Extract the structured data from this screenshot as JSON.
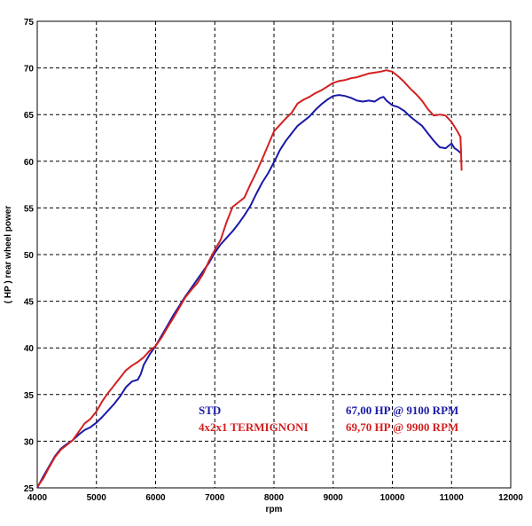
{
  "chart_data": {
    "type": "line",
    "xlabel": "rpm",
    "ylabel": "( HP )  rear  wheel  power",
    "xlim": [
      4000,
      12000
    ],
    "ylim": [
      25,
      75
    ],
    "xticks": [
      4000,
      5000,
      6000,
      7000,
      8000,
      9000,
      10000,
      11000,
      12000
    ],
    "yticks": [
      25,
      30,
      35,
      40,
      45,
      50,
      55,
      60,
      65,
      70,
      75
    ],
    "grid": true,
    "legend_position": "bottom-right",
    "series": [
      {
        "name": "STD",
        "summary": "67,00 HP @ 9100 RPM",
        "color": "#1a1aa8",
        "points": [
          [
            4000,
            25.0
          ],
          [
            4100,
            26.2
          ],
          [
            4200,
            27.3
          ],
          [
            4300,
            28.4
          ],
          [
            4400,
            29.2
          ],
          [
            4500,
            29.7
          ],
          [
            4600,
            30.1
          ],
          [
            4700,
            30.7
          ],
          [
            4800,
            31.2
          ],
          [
            4900,
            31.5
          ],
          [
            5000,
            32.0
          ],
          [
            5100,
            32.6
          ],
          [
            5200,
            33.3
          ],
          [
            5300,
            34.0
          ],
          [
            5400,
            34.8
          ],
          [
            5500,
            35.8
          ],
          [
            5600,
            36.4
          ],
          [
            5700,
            36.6
          ],
          [
            5750,
            37.2
          ],
          [
            5800,
            38.2
          ],
          [
            5900,
            39.3
          ],
          [
            6000,
            40.2
          ],
          [
            6100,
            41.3
          ],
          [
            6200,
            42.4
          ],
          [
            6300,
            43.5
          ],
          [
            6400,
            44.5
          ],
          [
            6500,
            45.5
          ],
          [
            6600,
            46.4
          ],
          [
            6700,
            47.3
          ],
          [
            6800,
            48.2
          ],
          [
            6900,
            49.1
          ],
          [
            7000,
            50.2
          ],
          [
            7100,
            51.1
          ],
          [
            7200,
            51.8
          ],
          [
            7300,
            52.5
          ],
          [
            7400,
            53.3
          ],
          [
            7500,
            54.2
          ],
          [
            7600,
            55.2
          ],
          [
            7700,
            56.5
          ],
          [
            7800,
            57.7
          ],
          [
            7900,
            58.7
          ],
          [
            8000,
            59.9
          ],
          [
            8100,
            61.2
          ],
          [
            8200,
            62.2
          ],
          [
            8300,
            63.0
          ],
          [
            8400,
            63.8
          ],
          [
            8500,
            64.3
          ],
          [
            8600,
            64.8
          ],
          [
            8700,
            65.5
          ],
          [
            8800,
            66.1
          ],
          [
            8900,
            66.6
          ],
          [
            9000,
            67.0
          ],
          [
            9100,
            67.1
          ],
          [
            9200,
            67.0
          ],
          [
            9300,
            66.8
          ],
          [
            9400,
            66.5
          ],
          [
            9500,
            66.4
          ],
          [
            9600,
            66.5
          ],
          [
            9700,
            66.4
          ],
          [
            9800,
            66.8
          ],
          [
            9850,
            66.9
          ],
          [
            9900,
            66.5
          ],
          [
            10000,
            66.0
          ],
          [
            10100,
            65.8
          ],
          [
            10200,
            65.4
          ],
          [
            10300,
            64.8
          ],
          [
            10400,
            64.3
          ],
          [
            10500,
            63.8
          ],
          [
            10600,
            63.0
          ],
          [
            10700,
            62.2
          ],
          [
            10800,
            61.5
          ],
          [
            10900,
            61.4
          ],
          [
            11000,
            61.9
          ],
          [
            11050,
            61.4
          ],
          [
            11100,
            61.2
          ],
          [
            11150,
            60.9
          ]
        ]
      },
      {
        "name": "4x2x1 TERMIGNONI",
        "summary": "69,70 HP @ 9900 RPM",
        "color": "#d42020",
        "points": [
          [
            4000,
            25.1
          ],
          [
            4100,
            26.0
          ],
          [
            4200,
            27.2
          ],
          [
            4300,
            28.3
          ],
          [
            4400,
            29.1
          ],
          [
            4500,
            29.6
          ],
          [
            4600,
            30.1
          ],
          [
            4700,
            31.0
          ],
          [
            4800,
            31.9
          ],
          [
            4900,
            32.4
          ],
          [
            5000,
            33.2
          ],
          [
            5100,
            34.3
          ],
          [
            5200,
            35.2
          ],
          [
            5300,
            36.0
          ],
          [
            5400,
            36.8
          ],
          [
            5500,
            37.6
          ],
          [
            5600,
            38.1
          ],
          [
            5700,
            38.5
          ],
          [
            5800,
            39.0
          ],
          [
            5900,
            39.7
          ],
          [
            6000,
            40.2
          ],
          [
            6100,
            41.1
          ],
          [
            6200,
            42.2
          ],
          [
            6300,
            43.2
          ],
          [
            6400,
            44.3
          ],
          [
            6500,
            45.4
          ],
          [
            6600,
            46.2
          ],
          [
            6700,
            46.9
          ],
          [
            6800,
            47.9
          ],
          [
            6900,
            49.3
          ],
          [
            7000,
            50.5
          ],
          [
            7100,
            51.6
          ],
          [
            7200,
            53.5
          ],
          [
            7300,
            55.1
          ],
          [
            7400,
            55.6
          ],
          [
            7500,
            56.1
          ],
          [
            7600,
            57.5
          ],
          [
            7700,
            58.8
          ],
          [
            7800,
            60.2
          ],
          [
            7900,
            61.7
          ],
          [
            8000,
            63.2
          ],
          [
            8100,
            63.9
          ],
          [
            8200,
            64.6
          ],
          [
            8300,
            65.2
          ],
          [
            8400,
            66.2
          ],
          [
            8500,
            66.6
          ],
          [
            8600,
            66.9
          ],
          [
            8700,
            67.3
          ],
          [
            8800,
            67.6
          ],
          [
            8900,
            68.0
          ],
          [
            9000,
            68.4
          ],
          [
            9100,
            68.6
          ],
          [
            9200,
            68.7
          ],
          [
            9300,
            68.9
          ],
          [
            9400,
            69.0
          ],
          [
            9500,
            69.2
          ],
          [
            9600,
            69.4
          ],
          [
            9700,
            69.5
          ],
          [
            9800,
            69.6
          ],
          [
            9900,
            69.75
          ],
          [
            10000,
            69.6
          ],
          [
            10100,
            69.1
          ],
          [
            10200,
            68.5
          ],
          [
            10300,
            67.8
          ],
          [
            10400,
            67.2
          ],
          [
            10500,
            66.5
          ],
          [
            10600,
            65.6
          ],
          [
            10700,
            64.9
          ],
          [
            10800,
            65.0
          ],
          [
            10900,
            64.9
          ],
          [
            11000,
            64.2
          ],
          [
            11100,
            63.2
          ],
          [
            11150,
            62.6
          ],
          [
            11160,
            61.2
          ],
          [
            11170,
            59.0
          ]
        ]
      }
    ]
  }
}
